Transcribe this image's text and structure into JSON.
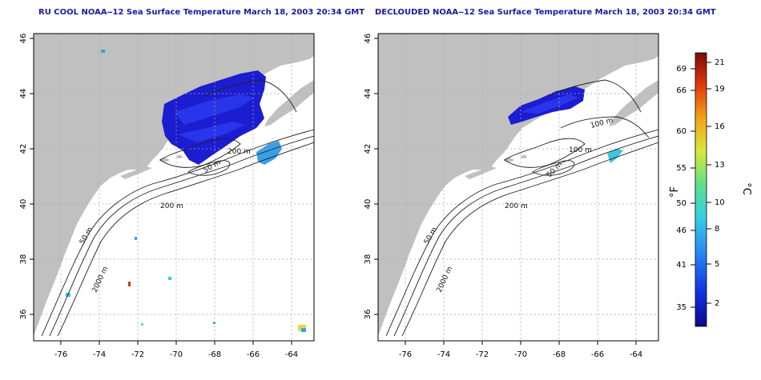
{
  "panels": [
    {
      "title": "RU COOL NOAA‒12 Sea Surface Temperature March 18, 2003 20:34 GMT"
    },
    {
      "title": "DECLOUDED NOAA‒12 Sea Surface Temperature March 18, 2003 20:34 GMT"
    }
  ],
  "axes": {
    "lon_ticks": [
      "-76",
      "-74",
      "-72",
      "-70",
      "-68",
      "-66",
      "-64"
    ],
    "lat_ticks": [
      "36",
      "38",
      "40",
      "42",
      "44",
      "46"
    ]
  },
  "contours": {
    "left": [
      "200 m",
      "50 m",
      "2000 m",
      "200 m",
      "50 m"
    ],
    "right": [
      "100 m",
      "100 m",
      "50 m",
      "200 m",
      "50 m",
      "2000 m"
    ]
  },
  "colorbar": {
    "f_label": "°F",
    "c_label": "°C",
    "f_ticks": [
      "69",
      "66",
      "60",
      "55",
      "50",
      "46",
      "41",
      "35"
    ],
    "c_ticks": [
      "21",
      "19",
      "16",
      "13",
      "10",
      "8",
      "5",
      "2"
    ]
  },
  "colors": {
    "land": "#c0c0c0",
    "frame": "#000000",
    "title": "#1a1aa0",
    "sst_cold": "#1c1cd0",
    "sst_cool": "#3aa0e6"
  }
}
